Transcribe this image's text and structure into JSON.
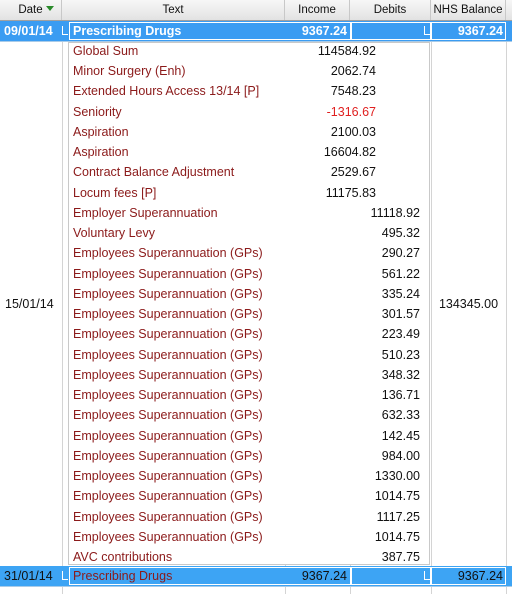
{
  "header": {
    "columns": [
      "Date",
      "Text",
      "Income",
      "Debits",
      "NHS Balance"
    ]
  },
  "rows": [
    {
      "date": "09/01/14",
      "text": "Prescribing Drugs",
      "income": "9367.24",
      "balance": "9367.24"
    },
    {
      "date": "15/01/14",
      "balance": "134345.00",
      "items": [
        {
          "text": "Global Sum",
          "income": "114584.92"
        },
        {
          "text": "Minor Surgery (Enh)",
          "income": "2062.74"
        },
        {
          "text": "Extended Hours Access 13/14 [P]",
          "income": "7548.23"
        },
        {
          "text": "Seniority",
          "income": "-1316.67"
        },
        {
          "text": "Aspiration",
          "income": "2100.03"
        },
        {
          "text": "Aspiration",
          "income": "16604.82"
        },
        {
          "text": "Contract Balance Adjustment",
          "income": "2529.67"
        },
        {
          "text": "Locum fees [P]",
          "income": "11175.83"
        },
        {
          "text": "Employer Superannuation",
          "debit": "11118.92"
        },
        {
          "text": "Voluntary Levy",
          "debit": "495.32"
        },
        {
          "text": "Employees Superannuation (GPs)",
          "debit": "290.27"
        },
        {
          "text": "Employees Superannuation (GPs)",
          "debit": "561.22"
        },
        {
          "text": "Employees Superannuation (GPs)",
          "debit": "335.24"
        },
        {
          "text": "Employees Superannuation (GPs)",
          "debit": "301.57"
        },
        {
          "text": "Employees Superannuation (GPs)",
          "debit": "223.49"
        },
        {
          "text": "Employees Superannuation (GPs)",
          "debit": "510.23"
        },
        {
          "text": "Employees Superannuation (GPs)",
          "debit": "348.32"
        },
        {
          "text": "Employees Superannuation (GPs)",
          "debit": "136.71"
        },
        {
          "text": "Employees Superannuation (GPs)",
          "debit": "632.33"
        },
        {
          "text": "Employees Superannuation (GPs)",
          "debit": "142.45"
        },
        {
          "text": "Employees Superannuation (GPs)",
          "debit": "984.00"
        },
        {
          "text": "Employees Superannuation (GPs)",
          "debit": "1330.00"
        },
        {
          "text": "Employees Superannuation (GPs)",
          "debit": "1014.75"
        },
        {
          "text": "Employees Superannuation (GPs)",
          "debit": "1117.25"
        },
        {
          "text": "Employees Superannuation (GPs)",
          "debit": "1014.75"
        },
        {
          "text": "AVC contributions",
          "debit": "387.75"
        }
      ]
    },
    {
      "date": "31/01/14",
      "text": "Prescribing Drugs",
      "income": "9367.24",
      "balance": "9367.24"
    }
  ]
}
